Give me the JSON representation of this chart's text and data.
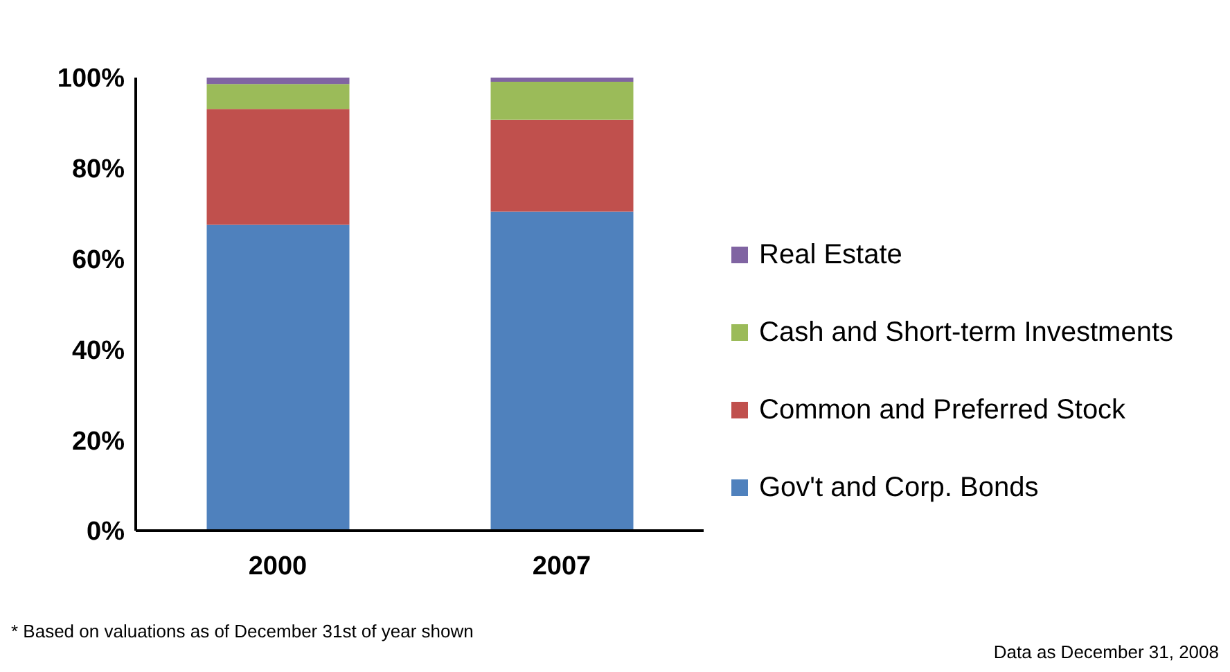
{
  "chart_data": {
    "type": "bar",
    "stacked": true,
    "categories": [
      "2000",
      "2007"
    ],
    "series": [
      {
        "name": "Gov't and Corp. Bonds",
        "color": "#4f81bd",
        "values": [
          67.5,
          70.4
        ]
      },
      {
        "name": "Common and Preferred Stock",
        "color": "#c0504d",
        "values": [
          25.6,
          20.3
        ]
      },
      {
        "name": "Cash and Short-term Investments",
        "color": "#9bbb59",
        "values": [
          5.5,
          8.4
        ]
      },
      {
        "name": "Real Estate",
        "color": "#8064a2",
        "values": [
          1.4,
          0.9
        ]
      }
    ],
    "ylim": [
      0,
      100
    ],
    "yticks": [
      {
        "value": 0,
        "label": "0%"
      },
      {
        "value": 20,
        "label": "20%"
      },
      {
        "value": 40,
        "label": "40%"
      },
      {
        "value": 60,
        "label": "60%"
      },
      {
        "value": 80,
        "label": "80%"
      },
      {
        "value": 100,
        "label": "100%"
      }
    ],
    "grid": false,
    "legend": "right",
    "annotations": [
      "* Based on valuations as of December 31st of year shown",
      "Data as December 31, 2008"
    ]
  }
}
